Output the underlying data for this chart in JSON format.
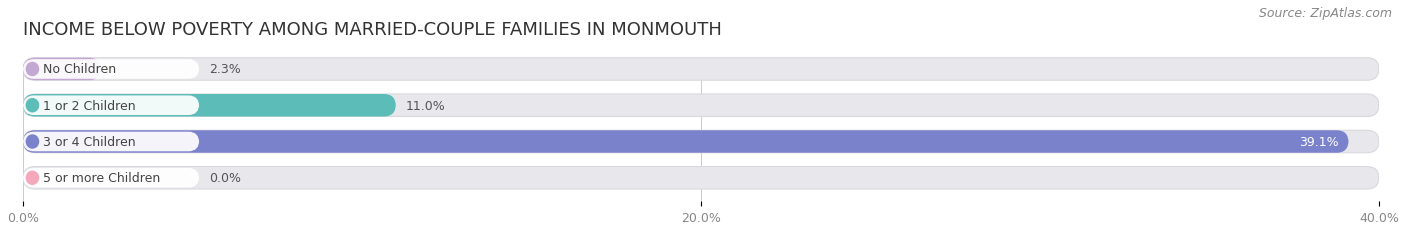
{
  "title": "INCOME BELOW POVERTY AMONG MARRIED-COUPLE FAMILIES IN MONMOUTH",
  "source": "Source: ZipAtlas.com",
  "categories": [
    "No Children",
    "1 or 2 Children",
    "3 or 4 Children",
    "5 or more Children"
  ],
  "values": [
    2.3,
    11.0,
    39.1,
    0.0
  ],
  "bar_colors": [
    "#c4a8d4",
    "#5bbcb8",
    "#7b82cc",
    "#f4a8bc"
  ],
  "xlim": [
    0,
    40.0
  ],
  "xticks": [
    0.0,
    20.0,
    40.0
  ],
  "xtick_labels": [
    "0.0%",
    "20.0%",
    "40.0%"
  ],
  "title_fontsize": 13,
  "source_fontsize": 9,
  "bar_height": 0.62,
  "background_color": "#ffffff",
  "bar_bg_color": "#e8e8ec"
}
